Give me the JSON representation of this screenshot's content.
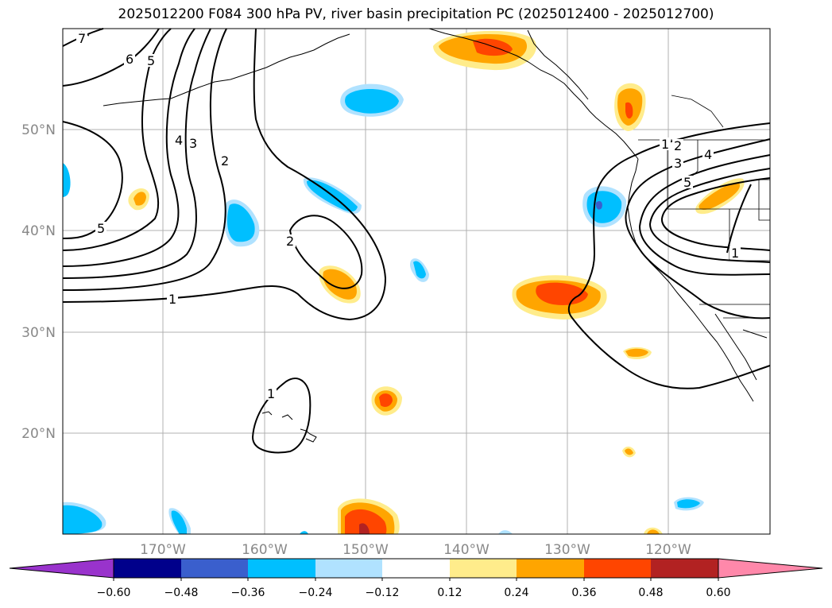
{
  "title": "2025012200 F084 300 hPa PV, river basin precipitation PC (2025012400 - 2025012700)",
  "map": {
    "lat_labels": [
      "50°N",
      "40°N",
      "30°N",
      "20°N"
    ],
    "lon_labels": [
      "170°W",
      "160°W",
      "150°W",
      "140°W",
      "130°W",
      "120°W"
    ],
    "contour_labels": [
      "7",
      "6",
      "5",
      "4",
      "3",
      "2",
      "5",
      "2",
      "1",
      "1",
      "1",
      "2",
      "3",
      "4",
      "5",
      "1"
    ]
  },
  "colorbar": {
    "ticks": [
      "−0.60",
      "−0.48",
      "−0.36",
      "−0.24",
      "−0.12",
      "0.12",
      "0.24",
      "0.36",
      "0.48",
      "0.60"
    ],
    "colors": [
      "#9933cc",
      "#00008b",
      "#3a5fcd",
      "#00bfff",
      "#b0e2ff",
      "#ffffff",
      "#ffec8b",
      "#ffa500",
      "#ff4500",
      "#b22222",
      "#ff88aa"
    ]
  }
}
